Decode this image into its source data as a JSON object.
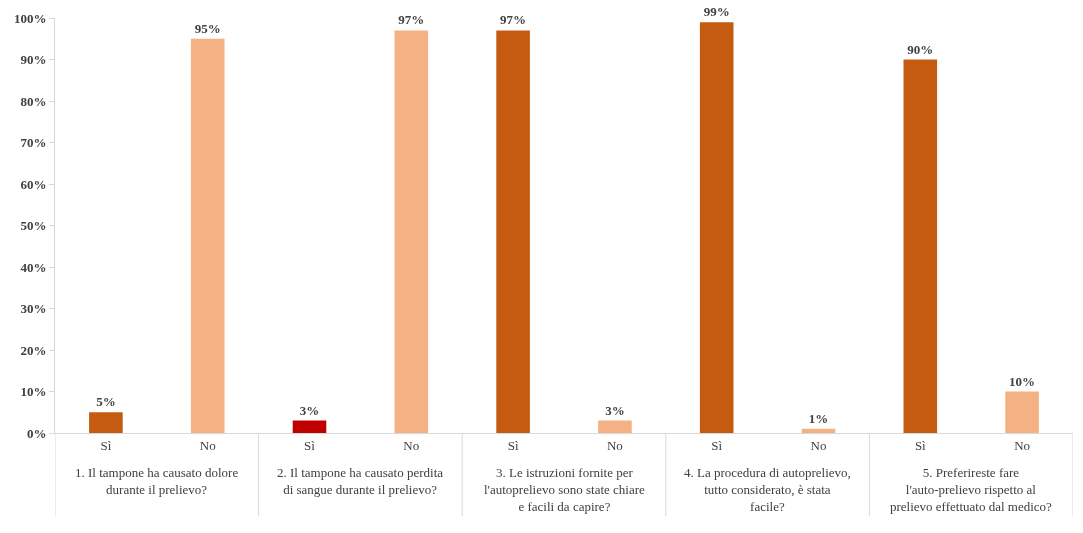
{
  "chart_data": {
    "type": "bar",
    "categories": [
      "Sì",
      "No",
      "Sì",
      "No",
      "Sì",
      "No",
      "Sì",
      "No",
      "Sì",
      "No"
    ],
    "values": [
      5,
      95,
      3,
      97,
      97,
      3,
      99,
      1,
      90,
      10
    ],
    "colors": [
      "#c55a11",
      "#f4b183",
      "#c00000",
      "#f4b183",
      "#c55a11",
      "#f4b183",
      "#c55a11",
      "#f4b183",
      "#c55a11",
      "#f4b183"
    ],
    "value_labels": [
      "5%",
      "95%",
      "3%",
      "97%",
      "97%",
      "3%",
      "99%",
      "1%",
      "90%",
      "10%"
    ],
    "annotations": [
      "1. Il tampone ha causato dolore durante il prelievo?",
      "2. Il tampone ha causato perdita di sangue durante il prelievo?",
      "3. Le istruzioni fornite per l'autoprelievo sono state chiare e facili da capire?",
      "4. La procedura di autoprelievo, tutto considerato, è stata facile?",
      "5. Preferireste fare l'auto-prelievo rispetto al prelievo effettuato dal medico?"
    ],
    "ylim": [
      0,
      100
    ],
    "yticks": [
      {
        "value": 0,
        "label": "0%"
      },
      {
        "value": 10,
        "label": "10%"
      },
      {
        "value": 20,
        "label": "20%"
      },
      {
        "value": 30,
        "label": "30%"
      },
      {
        "value": 40,
        "label": "40%"
      },
      {
        "value": 50,
        "label": "50%"
      },
      {
        "value": 60,
        "label": "60%"
      },
      {
        "value": 70,
        "label": "70%"
      },
      {
        "value": 80,
        "label": "80%"
      },
      {
        "value": 90,
        "label": "90%"
      },
      {
        "value": 100,
        "label": "100%"
      }
    ]
  }
}
